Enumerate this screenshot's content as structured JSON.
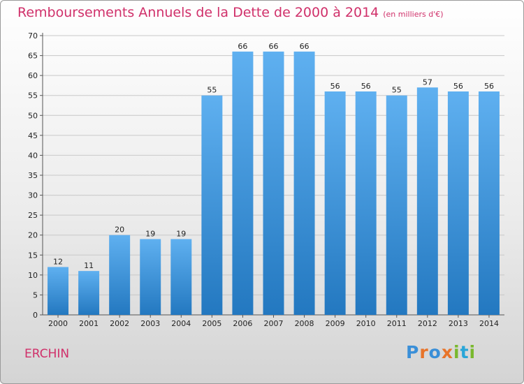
{
  "chart_data": {
    "type": "bar",
    "title": "Remboursements Annuels de la Dette de 2000 à 2014",
    "unit_note": "(en milliers d'€)",
    "categories": [
      "2000",
      "2001",
      "2002",
      "2003",
      "2004",
      "2005",
      "2006",
      "2007",
      "2008",
      "2009",
      "2010",
      "2011",
      "2012",
      "2013",
      "2014"
    ],
    "values": [
      12,
      11,
      20,
      19,
      19,
      55,
      66,
      66,
      66,
      56,
      56,
      55,
      57,
      56,
      56
    ],
    "xlabel": "",
    "ylabel": "",
    "ylim": [
      0,
      70
    ],
    "yticks": [
      0,
      5,
      10,
      15,
      20,
      25,
      30,
      35,
      40,
      45,
      50,
      55,
      60,
      65,
      70
    ],
    "grid": true,
    "legend": "none"
  },
  "commune": "ERCHIN",
  "logo": {
    "text": "Proxiti",
    "colors": [
      "#3a8fd8",
      "#e8742a",
      "#3a8fd8",
      "#e8742a",
      "#7ab82e",
      "#2aa6d8",
      "#7ab82e"
    ]
  },
  "colors": {
    "title": "#d0306a",
    "bar_top": "#5fb0f0",
    "bar_bottom": "#2378c0"
  }
}
